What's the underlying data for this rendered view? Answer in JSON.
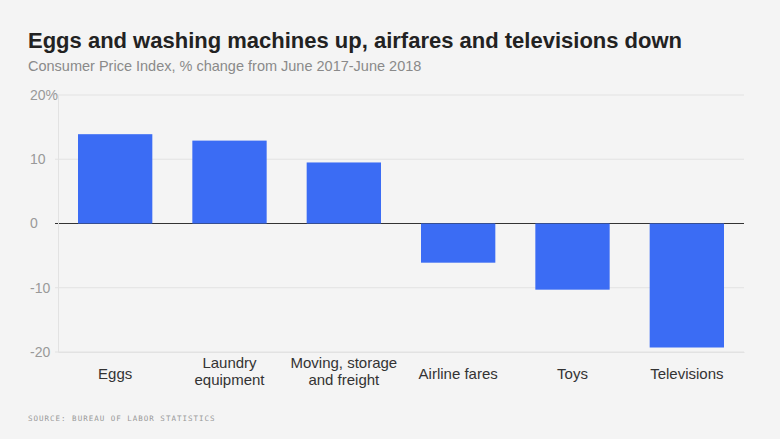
{
  "chart_data": {
    "type": "bar",
    "title": "Eggs and washing machines up, airfares and televisions down",
    "subtitle": "Consumer Price Index, % change from June 2017-June 2018",
    "source": "SOURCE: BUREAU OF LABOR STATISTICS",
    "categories": [
      "Eggs",
      "Laundry equipment",
      "Moving, storage and freight",
      "Airline fares",
      "Toys",
      "Televisions"
    ],
    "values": [
      13.9,
      12.9,
      9.5,
      -6.1,
      -10.3,
      -19.3
    ],
    "color": "#3b6cf4",
    "ylim": [
      -20,
      20
    ],
    "yticks": [
      {
        "value": 20,
        "label": "20%"
      },
      10,
      0,
      -10,
      -20
    ],
    "grid": true
  }
}
